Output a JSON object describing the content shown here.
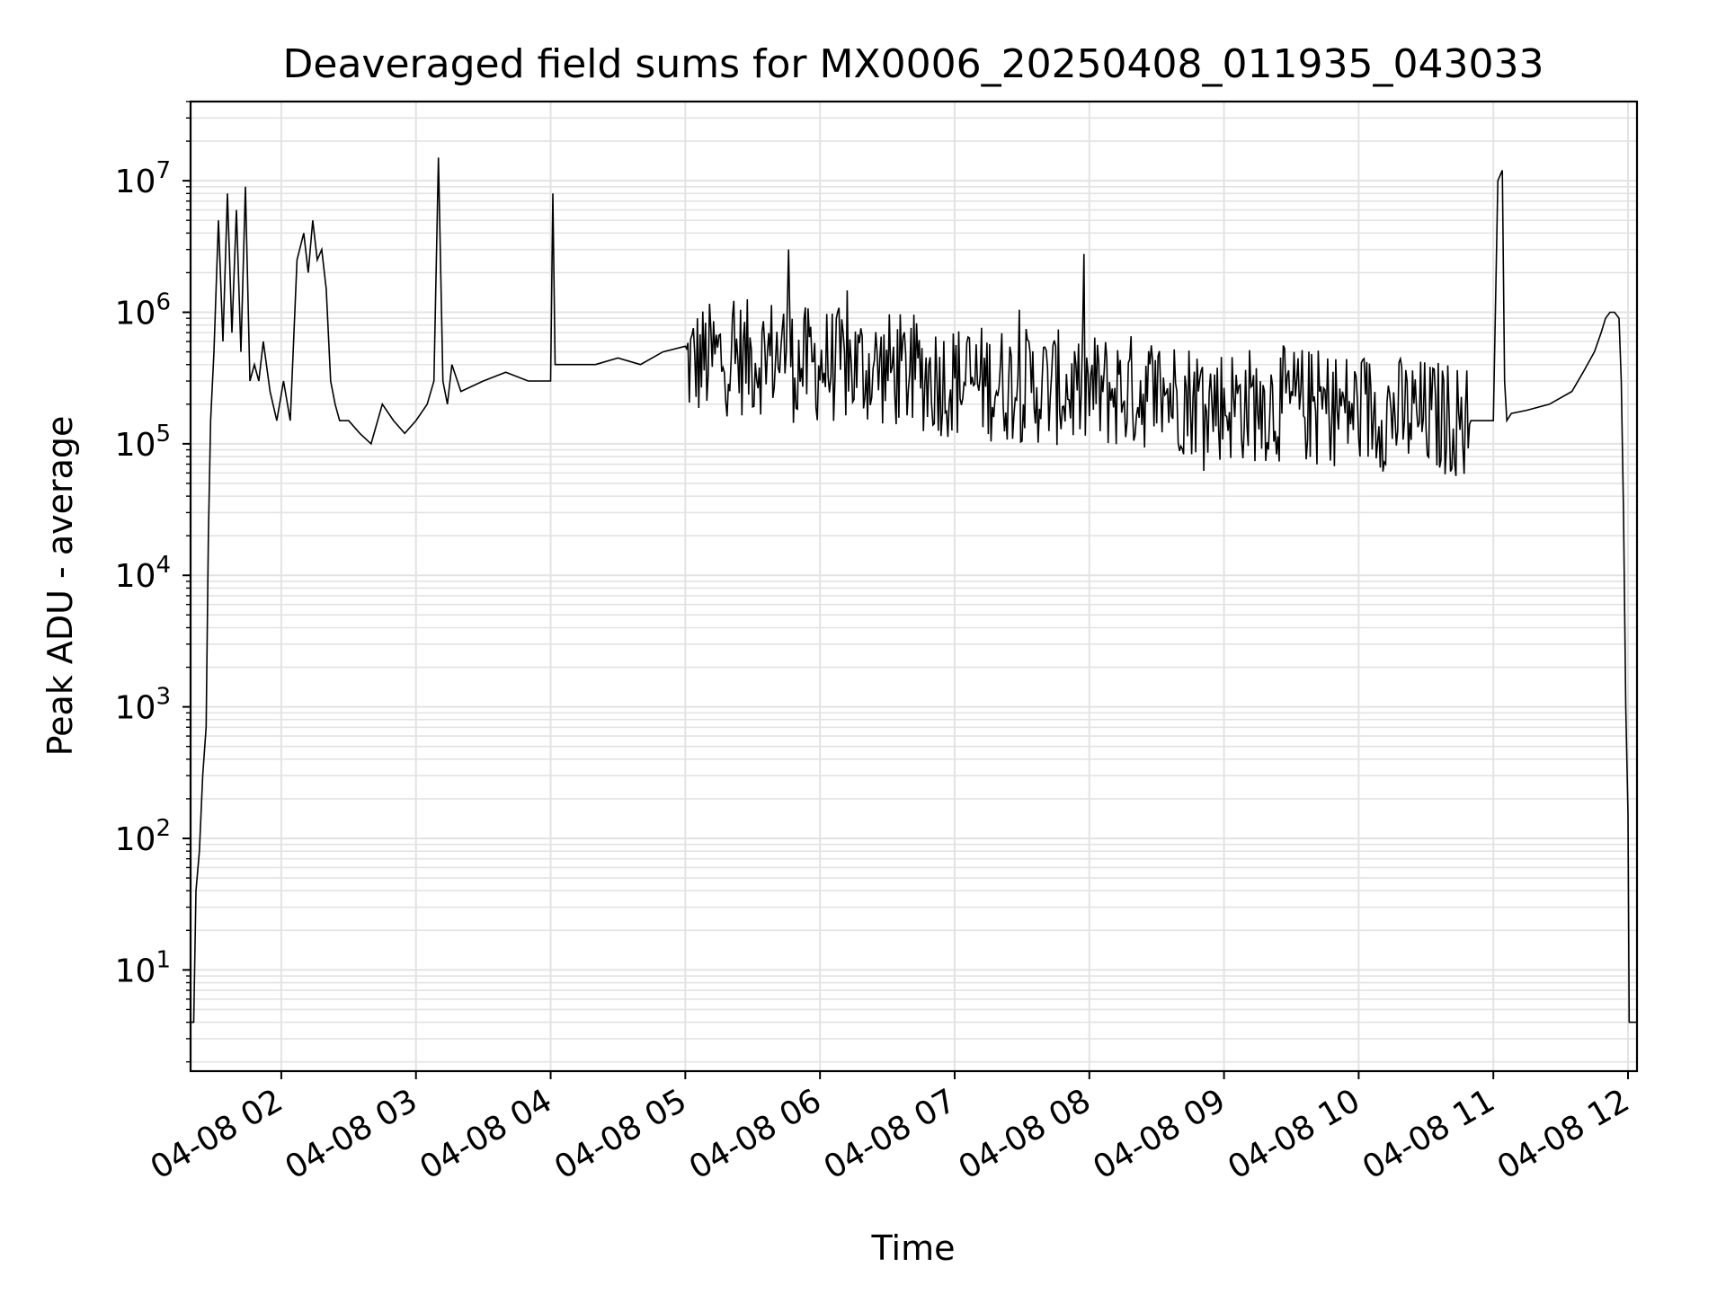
{
  "chart_data": {
    "type": "line",
    "title": "Deaveraged field sums for MX0006_20250408_011935_043033",
    "xlabel": "Time",
    "ylabel": "Peak ADU - average",
    "yscale": "log",
    "grid": true,
    "grid_minor": true,
    "line_color": "#000000",
    "grid_color": "#e3e3e3",
    "xlim": [
      "2025-04-08 01:19:35",
      "2025-04-08 12:04:00"
    ],
    "ylim": [
      1.7,
      40000000
    ],
    "x_ticks": [
      {
        "time": "2025-04-08 02:00",
        "label": "04-08 02"
      },
      {
        "time": "2025-04-08 03:00",
        "label": "04-08 03"
      },
      {
        "time": "2025-04-08 04:00",
        "label": "04-08 04"
      },
      {
        "time": "2025-04-08 05:00",
        "label": "04-08 05"
      },
      {
        "time": "2025-04-08 06:00",
        "label": "04-08 06"
      },
      {
        "time": "2025-04-08 07:00",
        "label": "04-08 07"
      },
      {
        "time": "2025-04-08 08:00",
        "label": "04-08 08"
      },
      {
        "time": "2025-04-08 09:00",
        "label": "04-08 09"
      },
      {
        "time": "2025-04-08 10:00",
        "label": "04-08 10"
      },
      {
        "time": "2025-04-08 11:00",
        "label": "04-08 11"
      },
      {
        "time": "2025-04-08 12:00",
        "label": "04-08 12"
      }
    ],
    "y_ticks": [
      {
        "value": 10,
        "base": "10",
        "exp": "1"
      },
      {
        "value": 100,
        "base": "10",
        "exp": "2"
      },
      {
        "value": 1000,
        "base": "10",
        "exp": "3"
      },
      {
        "value": 10000,
        "base": "10",
        "exp": "4"
      },
      {
        "value": 100000,
        "base": "10",
        "exp": "5"
      },
      {
        "value": 1000000,
        "base": "10",
        "exp": "6"
      },
      {
        "value": 10000000,
        "base": "10",
        "exp": "7"
      }
    ],
    "series": [
      {
        "x": [
          "2025-04-08 01:19:35",
          "2025-04-08 01:21:00",
          "2025-04-08 01:22:00",
          "2025-04-08 01:23:30",
          "2025-04-08 01:25:00",
          "2025-04-08 01:26:30",
          "2025-04-08 01:27:30",
          "2025-04-08 01:28:30",
          "2025-04-08 01:30:00",
          "2025-04-08 01:32:00",
          "2025-04-08 01:34:00",
          "2025-04-08 01:36:00",
          "2025-04-08 01:38:00",
          "2025-04-08 01:40:00",
          "2025-04-08 01:42:00",
          "2025-04-08 01:44:00",
          "2025-04-08 01:46:00",
          "2025-04-08 01:48:00",
          "2025-04-08 01:50:00",
          "2025-04-08 01:52:00",
          "2025-04-08 01:55:00",
          "2025-04-08 01:58:00",
          "2025-04-08 02:01:00",
          "2025-04-08 02:04:00",
          "2025-04-08 02:07:00",
          "2025-04-08 02:10:00",
          "2025-04-08 02:12:00",
          "2025-04-08 02:14:00",
          "2025-04-08 02:16:00",
          "2025-04-08 02:18:00",
          "2025-04-08 02:20:00",
          "2025-04-08 02:22:00",
          "2025-04-08 02:24:00",
          "2025-04-08 02:26:00",
          "2025-04-08 02:30:00",
          "2025-04-08 02:35:00",
          "2025-04-08 02:40:00",
          "2025-04-08 02:45:00",
          "2025-04-08 02:50:00",
          "2025-04-08 02:55:00",
          "2025-04-08 03:00:00",
          "2025-04-08 03:05:00",
          "2025-04-08 03:08:00",
          "2025-04-08 03:10:00",
          "2025-04-08 03:12:00",
          "2025-04-08 03:14:00",
          "2025-04-08 03:16:00",
          "2025-04-08 03:20:00",
          "2025-04-08 03:30:00",
          "2025-04-08 03:40:00",
          "2025-04-08 03:50:00",
          "2025-04-08 04:00:00",
          "2025-04-08 04:01:00",
          "2025-04-08 04:02:00",
          "2025-04-08 04:10:00",
          "2025-04-08 04:20:00",
          "2025-04-08 04:30:00",
          "2025-04-08 04:40:00",
          "2025-04-08 04:50:00",
          "2025-04-08 05:00:00",
          "2025-04-08 05:15:00",
          "2025-04-08 05:30:00",
          "2025-04-08 05:45:00",
          "2025-04-08 05:46:00",
          "2025-04-08 05:47:00",
          "2025-04-08 06:00:00",
          "2025-04-08 06:20:00",
          "2025-04-08 06:40:00",
          "2025-04-08 07:00:00",
          "2025-04-08 07:30:00",
          "2025-04-08 08:00:00",
          "2025-04-08 08:30:00",
          "2025-04-08 09:00:00",
          "2025-04-08 09:30:00",
          "2025-04-08 10:00:00",
          "2025-04-08 10:30:00",
          "2025-04-08 10:50:00",
          "2025-04-08 11:00:00",
          "2025-04-08 11:02:00",
          "2025-04-08 11:04:00",
          "2025-04-08 11:05:00",
          "2025-04-08 11:06:00",
          "2025-04-08 11:08:00",
          "2025-04-08 11:15:00",
          "2025-04-08 11:25:00",
          "2025-04-08 11:35:00",
          "2025-04-08 11:40:00",
          "2025-04-08 11:45:00",
          "2025-04-08 11:48:00",
          "2025-04-08 11:50:00",
          "2025-04-08 11:52:00",
          "2025-04-08 11:54:00",
          "2025-04-08 11:56:00",
          "2025-04-08 11:57:00",
          "2025-04-08 11:58:00",
          "2025-04-08 11:59:00",
          "2025-04-08 12:00:00",
          "2025-04-08 12:00:30",
          "2025-04-08 12:01:00",
          "2025-04-08 12:04:00"
        ],
        "y": [
          4,
          4,
          40,
          80,
          300,
          700,
          20000,
          150000,
          500000,
          5000000,
          600000,
          8000000,
          700000,
          6000000,
          500000,
          9000000,
          300000,
          400000,
          300000,
          600000,
          250000,
          150000,
          300000,
          150000,
          2500000,
          4000000,
          2000000,
          5000000,
          2500000,
          3000000,
          1500000,
          300000,
          200000,
          150000,
          150000,
          120000,
          100000,
          200000,
          150000,
          120000,
          150000,
          200000,
          300000,
          15000000,
          300000,
          200000,
          400000,
          250000,
          300000,
          350000,
          300000,
          300000,
          8000000,
          400000,
          400000,
          400000,
          450000,
          400000,
          500000,
          400000,
          450000,
          450000,
          500000,
          3000000,
          400000,
          400000,
          380000,
          350000,
          300000,
          280000,
          250000,
          250000,
          200000,
          200000,
          180000,
          160000,
          150000,
          150000,
          10000000,
          12000000,
          300000,
          150000,
          170000,
          180000,
          200000,
          250000,
          350000,
          500000,
          700000,
          900000,
          1000000,
          1000000,
          900000,
          300000,
          30000,
          1000,
          150,
          4,
          4,
          4
        ]
      }
    ]
  }
}
